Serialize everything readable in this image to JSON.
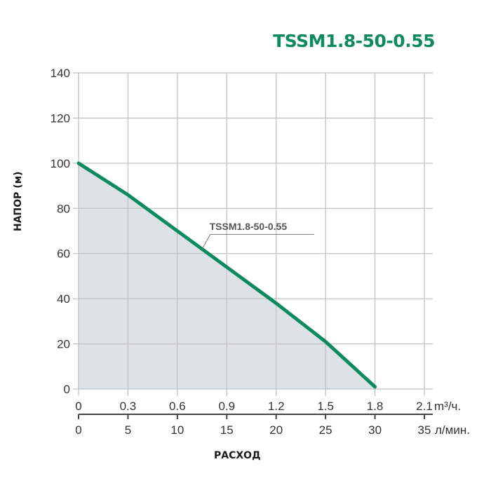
{
  "header": {
    "title": "TSSM1.8-50-0.55"
  },
  "axes": {
    "ylabel": "НАПОР (м)",
    "xlabel": "РАСХОД",
    "x_unit_top": "m³/ч.",
    "x_unit_bottom": "л/мин."
  },
  "colors": {
    "curve": "#0e8a5f",
    "fill": "#dde2e6",
    "grid": "#c2c2c2",
    "title": "#0e8a5f"
  },
  "chart_data": {
    "type": "area",
    "title": "TSSM1.8-50-0.55",
    "xlabel": "РАСХОД",
    "ylabel": "НАПОР (м)",
    "x_ticks_m3h": [
      "0",
      "0.3",
      "0.6",
      "0.9",
      "1.2",
      "1.5",
      "1.8",
      "2.1"
    ],
    "x_ticks_lmin": [
      "0",
      "5",
      "10",
      "15",
      "20",
      "25",
      "30",
      "35"
    ],
    "y_ticks": [
      "0",
      "20",
      "40",
      "60",
      "80",
      "100",
      "120",
      "140"
    ],
    "xlim": [
      0,
      2.1
    ],
    "ylim": [
      0,
      140
    ],
    "grid": true,
    "series": [
      {
        "name": "TSSM1.8-50-0.55",
        "x": [
          0,
          0.3,
          0.6,
          0.9,
          1.2,
          1.5,
          1.8
        ],
        "values": [
          100,
          86,
          70,
          54,
          38,
          21,
          1
        ]
      }
    ],
    "annotations": [
      {
        "text": "TSSM1.8-50-0.55",
        "x": 0.75,
        "y": 62
      }
    ]
  }
}
